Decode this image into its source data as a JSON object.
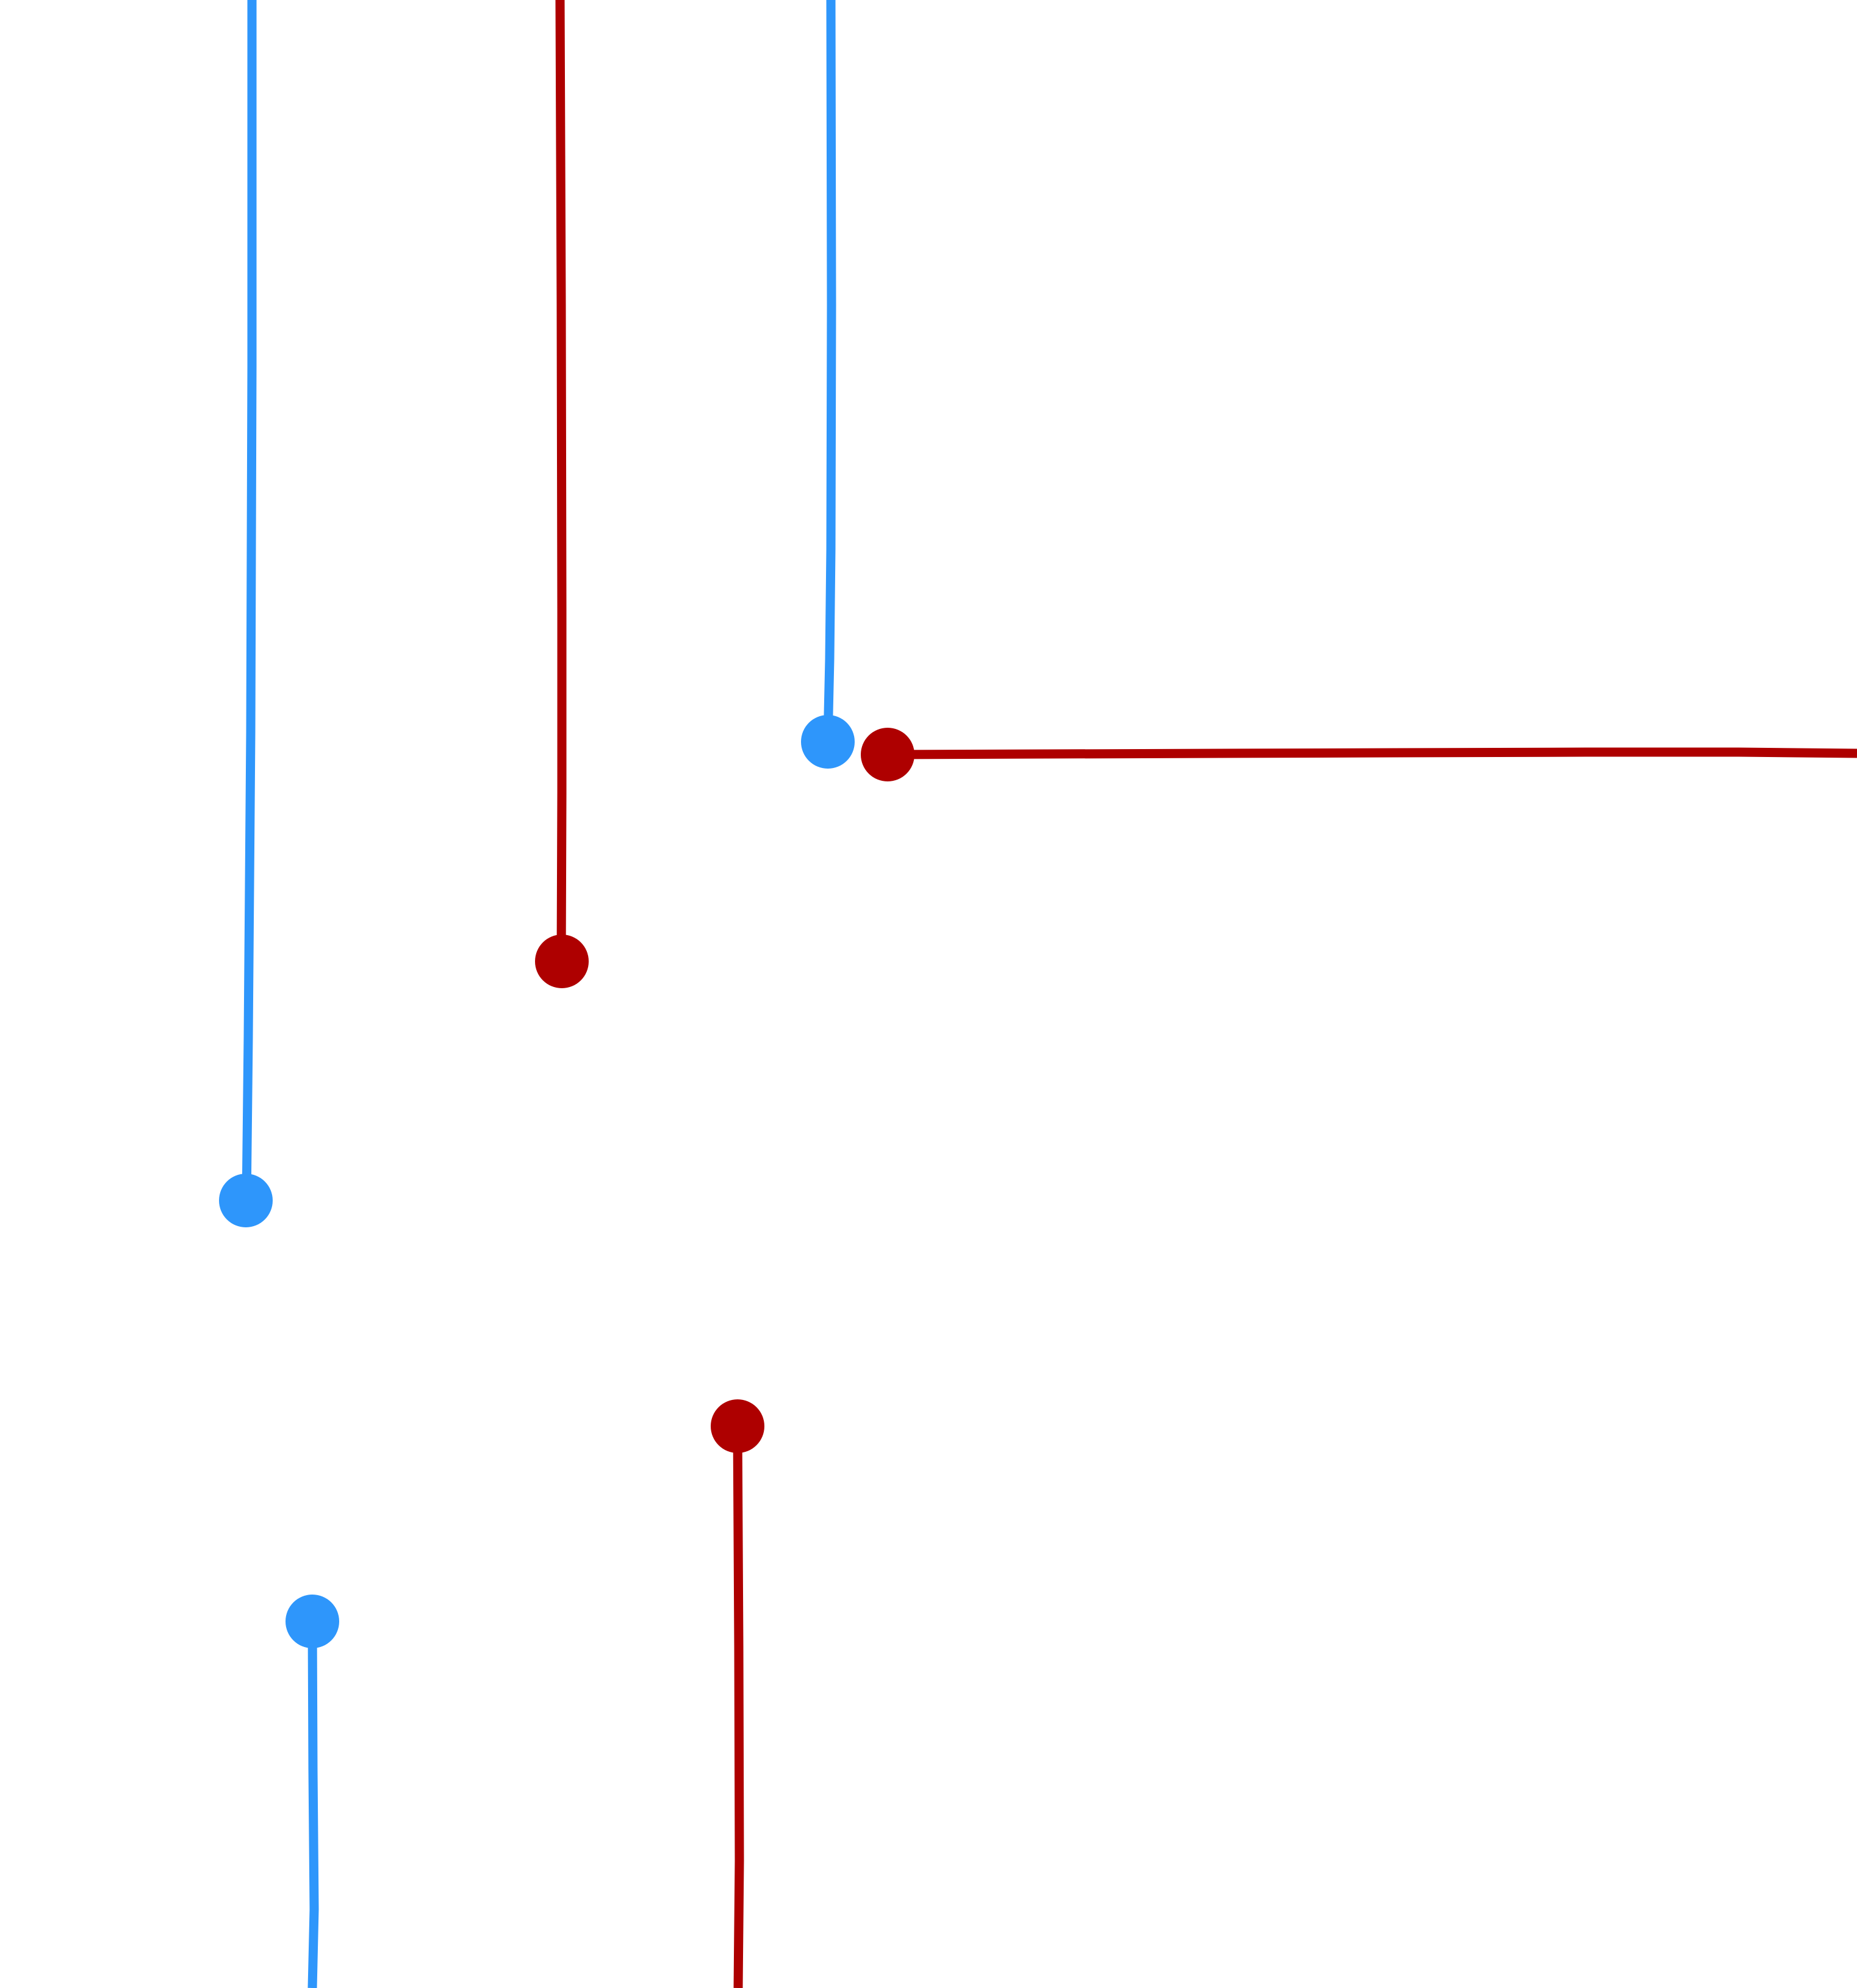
{
  "colors": {
    "background": "#ffffff",
    "blue": "#2e96fb",
    "red": "#ae0000"
  },
  "wires": [
    {
      "name": "blue-wire-left-long",
      "color": "blue"
    },
    {
      "name": "red-wire-middle",
      "color": "red"
    },
    {
      "name": "blue-wire-right",
      "color": "blue"
    },
    {
      "name": "red-wire-horizontal",
      "color": "red"
    },
    {
      "name": "red-wire-bottom",
      "color": "red"
    },
    {
      "name": "blue-wire-bottom",
      "color": "blue"
    }
  ]
}
